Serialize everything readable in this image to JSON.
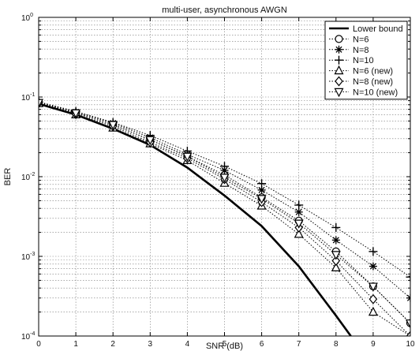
{
  "chart_data": {
    "type": "line",
    "title": "multi-user, asynchronous AWGN",
    "xlabel": "SNR (dB)",
    "ylabel": "BER",
    "x": [
      0,
      1,
      2,
      3,
      4,
      5,
      6,
      7,
      8,
      9,
      10
    ],
    "xlim": [
      0,
      10
    ],
    "ylim": [
      0.0001,
      1
    ],
    "yscale": "log",
    "x_tick_labels": [
      "0",
      "1",
      "2",
      "3",
      "4",
      "5",
      "6",
      "7",
      "8",
      "9",
      "10"
    ],
    "y_ticks": [
      {
        "value": 1,
        "base": "10",
        "exp": "0"
      },
      {
        "value": 0.1,
        "base": "10",
        "exp": "-1"
      },
      {
        "value": 0.01,
        "base": "10",
        "exp": "-2"
      },
      {
        "value": 0.001,
        "base": "10",
        "exp": "-3"
      },
      {
        "value": 0.0001,
        "base": "10",
        "exp": "-4"
      }
    ],
    "grid": true,
    "legend_position": "top-right",
    "series": [
      {
        "name": "Lower bound",
        "marker": "none",
        "style": "solid",
        "x": [
          0,
          1,
          2,
          3,
          4,
          5,
          6,
          7,
          8,
          8.4
        ],
        "values": [
          0.082,
          0.06,
          0.04,
          0.025,
          0.013,
          0.0058,
          0.0024,
          0.00075,
          0.00018,
          0.0001
        ]
      },
      {
        "name": "N=6",
        "marker": "circle",
        "style": "dotted",
        "values": [
          0.085,
          0.063,
          0.045,
          0.029,
          0.018,
          0.0105,
          0.0055,
          0.0028,
          0.00115,
          0.00042,
          0.000145
        ]
      },
      {
        "name": "N=8",
        "marker": "asterisk",
        "style": "dotted",
        "values": [
          0.086,
          0.065,
          0.047,
          0.031,
          0.019,
          0.012,
          0.0068,
          0.0036,
          0.0016,
          0.00075,
          0.0003
        ]
      },
      {
        "name": "N=10",
        "marker": "plus",
        "style": "dotted",
        "values": [
          0.087,
          0.066,
          0.048,
          0.033,
          0.021,
          0.0135,
          0.0082,
          0.0044,
          0.0023,
          0.00115,
          0.00055
        ]
      },
      {
        "name": "N=6 (new)",
        "marker": "triangle-up",
        "style": "dotted",
        "values": [
          0.083,
          0.06,
          0.041,
          0.026,
          0.016,
          0.0083,
          0.0043,
          0.0019,
          0.00072,
          0.0002,
          0.0001
        ]
      },
      {
        "name": "N=8 (new)",
        "marker": "diamond",
        "style": "dotted",
        "values": [
          0.084,
          0.061,
          0.043,
          0.027,
          0.017,
          0.0093,
          0.0048,
          0.0023,
          0.00088,
          0.00029,
          0.0001
        ]
      },
      {
        "name": "N=10 (new)",
        "marker": "triangle-down",
        "style": "dotted",
        "values": [
          0.085,
          0.063,
          0.045,
          0.029,
          0.018,
          0.0098,
          0.0053,
          0.0026,
          0.00105,
          0.00042,
          0.000145
        ]
      }
    ]
  }
}
